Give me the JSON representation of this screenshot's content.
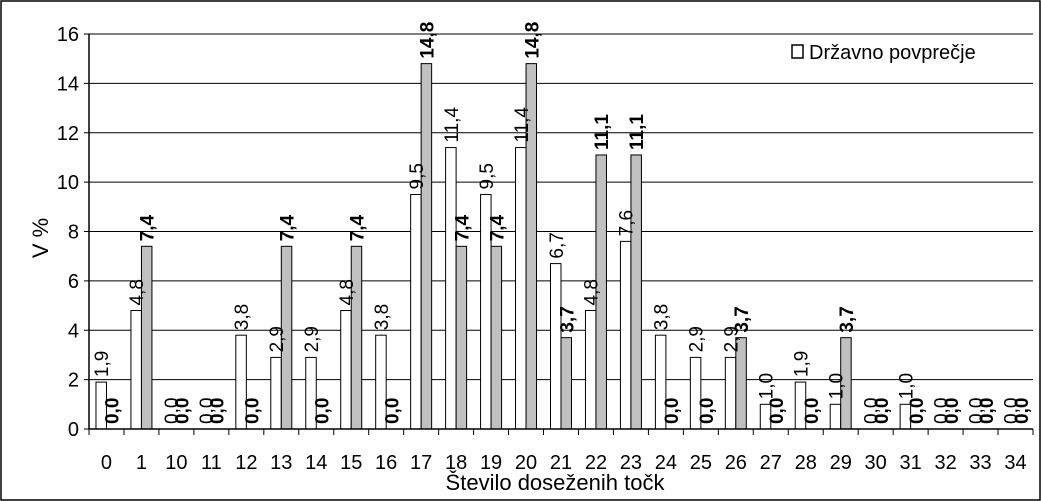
{
  "chart_data": {
    "type": "bar",
    "xlabel": "Število doseženih točk",
    "ylabel": "V %",
    "ylim": [
      0,
      16
    ],
    "yticks": [
      "0",
      "2",
      "4",
      "6",
      "8",
      "10",
      "12",
      "14",
      "16"
    ],
    "grid": true,
    "legend_position": "top-right",
    "categories": [
      "0",
      "1",
      "10",
      "11",
      "12",
      "13",
      "14",
      "15",
      "16",
      "17",
      "18",
      "19",
      "20",
      "21",
      "22",
      "23",
      "24",
      "25",
      "26",
      "27",
      "28",
      "29",
      "30",
      "31",
      "32",
      "33",
      "34"
    ],
    "series": [
      {
        "name": "Državno povprečje",
        "color": "#ffffff",
        "values": [
          1.9,
          4.8,
          0.0,
          0.0,
          3.8,
          2.9,
          2.9,
          4.8,
          3.8,
          9.5,
          11.4,
          9.5,
          11.4,
          6.7,
          4.8,
          7.6,
          3.8,
          2.9,
          2.9,
          1.0,
          1.9,
          1.0,
          0.0,
          1.0,
          0.0,
          0.0,
          0.0
        ],
        "labels": [
          "1,9",
          "4,8",
          "0,0",
          "0,0",
          "3,8",
          "2,9",
          "2,9",
          "4,8",
          "3,8",
          "9,5",
          "11,4",
          "9,5",
          "11,4",
          "6,7",
          "4,8",
          "7,6",
          "3,8",
          "2,9",
          "2,9",
          "1,0",
          "1,9",
          "1,0",
          "0,0",
          "1,0",
          "0,0",
          "0,0",
          "0,0"
        ]
      },
      {
        "name": "",
        "color": "#c0c0c0",
        "values": [
          0.0,
          7.4,
          0.0,
          0.0,
          0.0,
          7.4,
          0.0,
          7.4,
          0.0,
          14.8,
          7.4,
          7.4,
          14.8,
          3.7,
          11.1,
          11.1,
          0.0,
          0.0,
          3.7,
          0.0,
          0.0,
          3.7,
          0.0,
          0.0,
          0.0,
          0.0,
          0.0
        ],
        "labels": [
          "0,0",
          "7,4",
          "0,0",
          "0,0",
          "0,0",
          "7,4",
          "0,0",
          "7,4",
          "0,0",
          "14,8",
          "7,4",
          "7,4",
          "14,8",
          "3,7",
          "11,1",
          "11,1",
          "0,0",
          "0,0",
          "3,7",
          "0,0",
          "0,0",
          "3,7",
          "0,0",
          "0,0",
          "0,0",
          "0,0",
          "0,0"
        ]
      }
    ]
  }
}
